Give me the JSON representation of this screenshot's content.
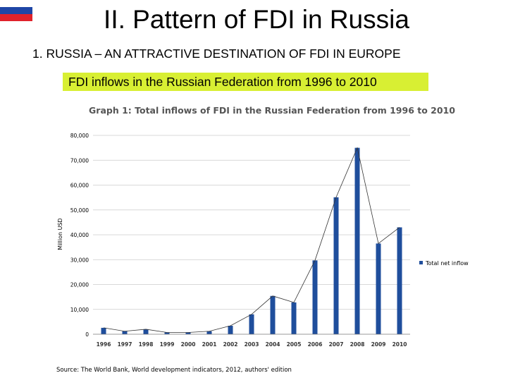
{
  "slide": {
    "title": "II. Pattern of FDI in Russia",
    "subtitle": "1. RUSSIA – AN ATTRACTIVE DESTINATION OF FDI IN EUROPE",
    "highlight": "FDI inflows in the Russian Federation from 1996 to 2010",
    "flag_colors": [
      "#ffffff",
      "#1f46a6",
      "#e0222b"
    ]
  },
  "chart_data": {
    "type": "bar",
    "title": "Graph 1: Total inflows of FDI in the Russian Federation from 1996 to 2010",
    "ylabel": "Million USD",
    "xlabel": "",
    "categories": [
      "1996",
      "1997",
      "1998",
      "1999",
      "2000",
      "2001",
      "2002",
      "2003",
      "2004",
      "2005",
      "2006",
      "2007",
      "2008",
      "2009",
      "2010"
    ],
    "series": [
      {
        "name": "Total net inflow",
        "values": [
          2579,
          1200,
          2000,
          700,
          700,
          1200,
          3400,
          8000,
          15400,
          12800,
          29700,
          55100,
          75000,
          36500,
          43000
        ],
        "color": "#1f4e9c"
      }
    ],
    "ylim": [
      0,
      80000
    ],
    "yticks": [
      "0",
      "10,000",
      "20,000",
      "30,000",
      "40,000",
      "50,000",
      "60,000",
      "70,000",
      "80,000"
    ],
    "trend_line": true,
    "grid": "horizontal",
    "legend_position": "right",
    "source": "Source: The World Bank, World development indicators, 2012, authors' edition"
  }
}
